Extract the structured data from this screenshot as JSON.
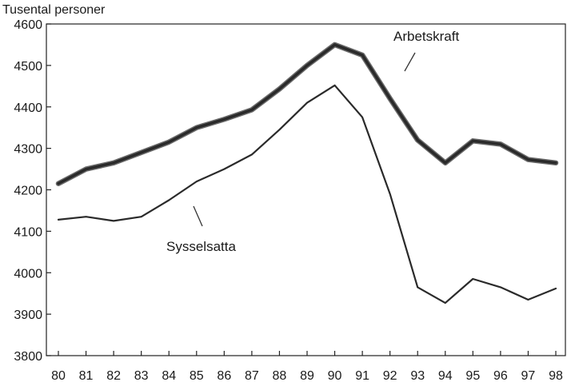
{
  "chart_data": {
    "type": "line",
    "ylabel": "Tusental personer",
    "ylim": [
      3800,
      4600
    ],
    "yticks": [
      3800,
      3900,
      4000,
      4100,
      4200,
      4300,
      4400,
      4500,
      4600
    ],
    "categories": [
      "80",
      "81",
      "82",
      "83",
      "84",
      "85",
      "86",
      "87",
      "88",
      "89",
      "90",
      "91",
      "92",
      "93",
      "94",
      "95",
      "96",
      "97",
      "98"
    ],
    "grid": false,
    "series": [
      {
        "name": "Arbetskraft",
        "values": [
          4215,
          4250,
          4265,
          4290,
          4315,
          4350,
          4370,
          4393,
          4443,
          4500,
          4550,
          4525,
          4420,
          4320,
          4265,
          4318,
          4310,
          4273,
          4265
        ],
        "color": "#2a2a2a",
        "emphasis": "thick"
      },
      {
        "name": "Sysselsatta",
        "values": [
          4128,
          4135,
          4125,
          4135,
          4175,
          4220,
          4250,
          4285,
          4345,
          4410,
          4452,
          4375,
          4190,
          3965,
          3927,
          3985,
          3965,
          3935,
          3962
        ],
        "color": "#2a2a2a",
        "emphasis": "normal"
      }
    ]
  }
}
